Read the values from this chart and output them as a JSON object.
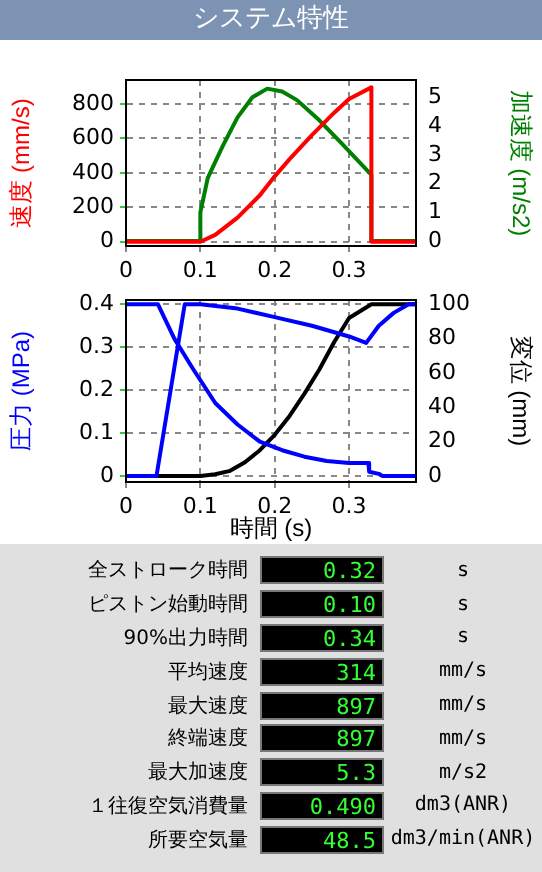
{
  "chart_data": [
    {
      "type": "line",
      "title": "システム特性",
      "ylabel": "速度 (mm/s)",
      "y2label": "加速度 (m/s2)",
      "xlim": [
        0,
        0.39
      ],
      "xticks": [
        0,
        0.1,
        0.2,
        0.3
      ],
      "ylim": [
        -25,
        940
      ],
      "yticks": [
        0,
        200,
        400,
        600,
        800
      ],
      "y2lim": [
        -0.17,
        5.6
      ],
      "y2ticks": [
        0,
        1,
        2,
        3,
        4,
        5
      ],
      "grid": true,
      "legend": false,
      "series": [
        {
          "color": "#ff0000",
          "x": [
            0,
            0.1,
            0.12,
            0.15,
            0.18,
            0.2,
            0.22,
            0.25,
            0.28,
            0.3,
            0.33,
            0.33,
            0.39
          ],
          "values": [
            0,
            0,
            40,
            140,
            270,
            380,
            480,
            620,
            750,
            830,
            897,
            0,
            0
          ]
        },
        {
          "color": "#008000",
          "axis": "y2",
          "x": [
            0,
            0.1,
            0.1,
            0.11,
            0.13,
            0.15,
            0.17,
            0.19,
            0.21,
            0.23,
            0.26,
            0.29,
            0.33,
            0.33,
            0.39
          ],
          "values": [
            0,
            0,
            1,
            2.2,
            3.3,
            4.3,
            5,
            5.3,
            5.2,
            4.9,
            4.2,
            3.4,
            2.3,
            0,
            0
          ]
        }
      ]
    },
    {
      "type": "line",
      "xlabel": "時間 (s)",
      "ylabel": "圧力 (MPa)",
      "y2label": "変位 (mm)",
      "xlim": [
        0,
        0.39
      ],
      "xticks": [
        0,
        0.1,
        0.2,
        0.3
      ],
      "ylim": [
        -0.014,
        0.41
      ],
      "yticks": [
        0,
        0.1,
        0.2,
        0.3,
        0.4
      ],
      "y2lim": [
        -3.5,
        102.5
      ],
      "y2ticks": [
        0,
        20,
        40,
        60,
        80,
        100
      ],
      "grid": true,
      "legend": false,
      "series": [
        {
          "color": "#0000ff",
          "x": [
            0,
            0.041,
            0.079,
            0.1,
            0.15,
            0.2,
            0.25,
            0.3,
            0.323,
            0.34,
            0.36,
            0.38,
            0.39
          ],
          "values": [
            0,
            0,
            0.4,
            0.4,
            0.39,
            0.37,
            0.35,
            0.325,
            0.31,
            0.35,
            0.38,
            0.4,
            0.4
          ]
        },
        {
          "color": "#0000ff",
          "x": [
            0,
            0.043,
            0.065,
            0.09,
            0.12,
            0.15,
            0.18,
            0.21,
            0.24,
            0.27,
            0.3,
            0.326,
            0.327,
            0.34,
            0.345,
            0.39
          ],
          "values": [
            0.4,
            0.4,
            0.32,
            0.25,
            0.17,
            0.12,
            0.08,
            0.06,
            0.045,
            0.035,
            0.03,
            0.03,
            0.01,
            0.005,
            0,
            0
          ]
        },
        {
          "color": "#000000",
          "axis": "y2",
          "x": [
            0,
            0.1,
            0.12,
            0.14,
            0.16,
            0.18,
            0.2,
            0.22,
            0.24,
            0.26,
            0.28,
            0.3,
            0.33,
            0.39
          ],
          "values": [
            0,
            0,
            1,
            3,
            8,
            15,
            24,
            35,
            48,
            62,
            78,
            92,
            100,
            100
          ]
        }
      ]
    },
    {
      "type": "other",
      "categories": [
        "全ストローク時間",
        "ピストン始動時間",
        "90%出力時間",
        "平均速度",
        "最大速度",
        "終端速度",
        "最大加速度",
        "１往復空気消費量",
        "所要空気量"
      ],
      "value_labels": [
        "0.32",
        "0.10",
        "0.34",
        "314",
        "897",
        "897",
        "5.3",
        "0.490",
        "48.5"
      ],
      "annotations": [
        "s",
        "s",
        "s",
        "mm/s",
        "mm/s",
        "mm/s",
        "m/s2",
        "dm3(ANR)",
        "dm3/min(ANR)"
      ]
    }
  ]
}
